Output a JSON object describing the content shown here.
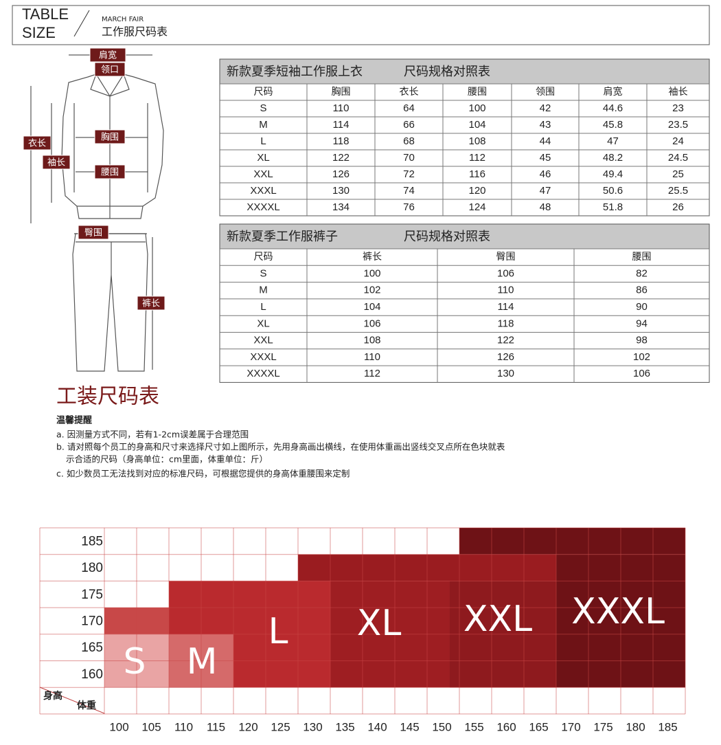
{
  "header": {
    "title_line1": "TABLE",
    "title_line2": "SIZE",
    "brand": "MARCH FAIR",
    "subtitle": "工作服尺码表"
  },
  "diagram": {
    "labels": [
      "肩宽",
      "领口",
      "衣长",
      "袖长",
      "胸围",
      "腰围",
      "臀围",
      "裤长"
    ]
  },
  "shirt_table": {
    "title": "新款夏季短袖工作服上衣",
    "title2": "尺码规格对照表",
    "columns": [
      "尺码",
      "胸围",
      "衣长",
      "腰围",
      "领围",
      "肩宽",
      "袖长"
    ],
    "rows": [
      [
        "S",
        "110",
        "64",
        "100",
        "42",
        "44.6",
        "23"
      ],
      [
        "M",
        "114",
        "66",
        "104",
        "43",
        "45.8",
        "23.5"
      ],
      [
        "L",
        "118",
        "68",
        "108",
        "44",
        "47",
        "24"
      ],
      [
        "XL",
        "122",
        "70",
        "112",
        "45",
        "48.2",
        "24.5"
      ],
      [
        "XXL",
        "126",
        "72",
        "116",
        "46",
        "49.4",
        "25"
      ],
      [
        "XXXL",
        "130",
        "74",
        "120",
        "47",
        "50.6",
        "25.5"
      ],
      [
        "XXXXL",
        "134",
        "76",
        "124",
        "48",
        "51.8",
        "26"
      ]
    ]
  },
  "pants_table": {
    "title": "新款夏季工作服裤子",
    "title2": "尺码规格对照表",
    "columns": [
      "尺码",
      "裤长",
      "臀围",
      "腰围"
    ],
    "rows": [
      [
        "S",
        "100",
        "106",
        "82"
      ],
      [
        "M",
        "102",
        "110",
        "86"
      ],
      [
        "L",
        "104",
        "114",
        "90"
      ],
      [
        "XL",
        "106",
        "118",
        "94"
      ],
      [
        "XXL",
        "108",
        "122",
        "98"
      ],
      [
        "XXXL",
        "110",
        "126",
        "102"
      ],
      [
        "XXXXL",
        "112",
        "130",
        "106"
      ]
    ]
  },
  "heading": "工装尺码表",
  "notes": {
    "title": "温馨提醒",
    "lines": [
      "a. 因测量方式不同，若有1-2cm误差属于合理范围",
      "b. 请对照每个员工的身高和尺寸来选择尺寸如上图所示，先用身高画出横线，在使用体重画出竖线交叉点所在色块就表",
      "示合适的尺码（身高单位：cm里面，体重单位：斤）",
      "c. 如少数员工无法找到对应的标准尺码，可根据您提供的身高体重腰围来定制"
    ]
  },
  "size_chart": {
    "heights": [
      185,
      180,
      175,
      170,
      165,
      160
    ],
    "weights": [
      100,
      105,
      110,
      115,
      120,
      125,
      130,
      135,
      140,
      145,
      150,
      155,
      160,
      165,
      170,
      175,
      180,
      185
    ],
    "height_label": "身高",
    "weight_label": "体重",
    "sizes": [
      "S",
      "M",
      "L",
      "XL",
      "XXL",
      "XXXL"
    ]
  }
}
